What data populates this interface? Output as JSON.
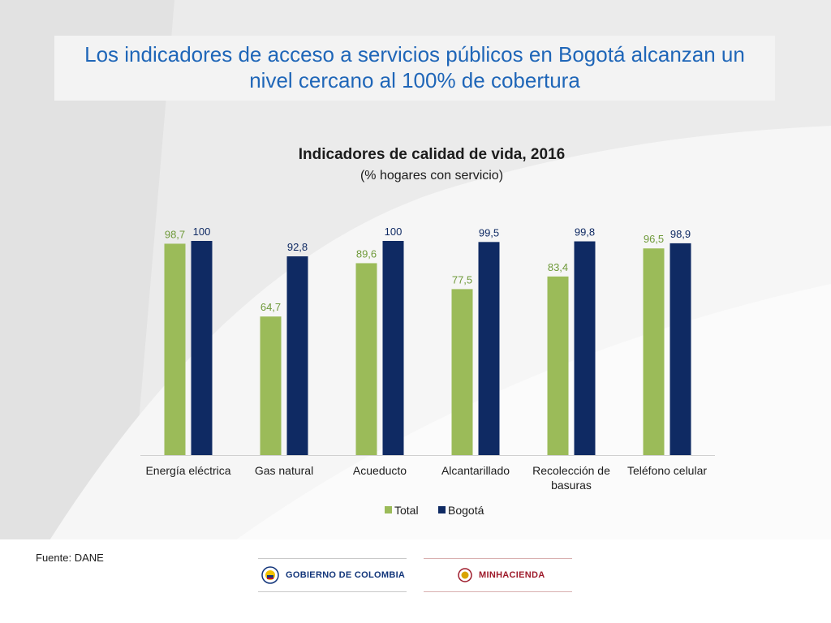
{
  "slide": {
    "title": "Los indicadores de acceso a servicios públicos en Bogotá alcanzan un nivel cercano al 100% de cobertura",
    "source": "Fuente: DANE"
  },
  "chart_data": {
    "type": "bar",
    "title": "Indicadores de calidad de vida, 2016",
    "subtitle": "(% hogares con servicio)",
    "categories": [
      "Energía eléctrica",
      "Gas natural",
      "Acueducto",
      "Alcantarillado",
      "Recolección de basuras",
      "Teléfono celular"
    ],
    "series": [
      {
        "name": "Total",
        "values": [
          98.7,
          64.7,
          89.6,
          77.5,
          83.4,
          96.5
        ],
        "labels": [
          "98,7",
          "64,7",
          "89,6",
          "77,5",
          "83,4",
          "96,5"
        ],
        "color": "#9bbb59",
        "label_color": "#6f9a3a"
      },
      {
        "name": "Bogotá",
        "values": [
          100,
          92.8,
          100,
          99.5,
          99.8,
          98.9
        ],
        "labels": [
          "100",
          "92,8",
          "100",
          "99,5",
          "99,8",
          "98,9"
        ],
        "color": "#0f2a63",
        "label_color": "#0f2a63"
      }
    ],
    "ylim": [
      0,
      100
    ],
    "grid": false,
    "legend": "bottom"
  },
  "footer": {
    "logos": {
      "gobierno": "GOBIERNO DE COLOMBIA",
      "minhacienda": "MINHACIENDA"
    },
    "colors": {
      "gobierno": "#12357a",
      "minhacienda": "#9e1b2b"
    }
  }
}
